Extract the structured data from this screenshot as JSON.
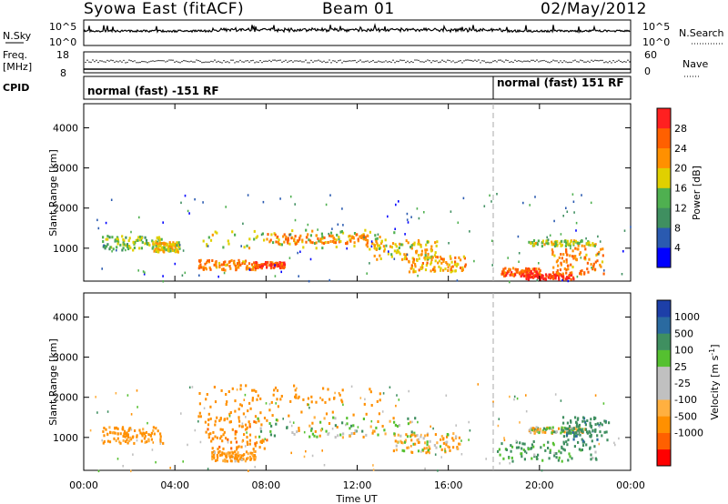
{
  "header": {
    "title": "Syowa East (fitACF)",
    "beam": "Beam 01",
    "date": "02/May/2012"
  },
  "noise_panel": {
    "left_label": "N.Sky",
    "right_label": "N.Search",
    "top_tick": "10^5",
    "bottom_tick": "10^0",
    "right_top_tick": "10^5",
    "right_bottom_tick": "10^0"
  },
  "freq_panel": {
    "label_line1": "Freq.",
    "label_line2": "[MHz]",
    "left_top_tick": "18",
    "left_bottom_tick": "8",
    "right_label": "Nave",
    "right_top_tick": "60",
    "right_bottom_tick": "0"
  },
  "cpid_panel": {
    "label": "CPID",
    "mode1": "normal (fast) -151 RF",
    "mode2": "normal (fast) 151 RF",
    "mode_change_hour": 18
  },
  "x_axis": {
    "label": "Time UT",
    "ticks": [
      "00:00",
      "04:00",
      "08:00",
      "12:00",
      "16:00",
      "20:00",
      "00:00"
    ]
  },
  "colors": {
    "power": [
      "#0000ff",
      "#2a5ab0",
      "#3f8f60",
      "#4fb050",
      "#e0d000",
      "#ff9000",
      "#ff6000",
      "#ff2020"
    ],
    "velocity": [
      "#ff0000",
      "#ff6000",
      "#ff9000",
      "#ffb040",
      "#c0c0c0",
      "#c0c0c0",
      "#55c030",
      "#3f8f60",
      "#2a6aa0",
      "#1d3fa8"
    ]
  },
  "chart_data": [
    {
      "type": "heatmap",
      "ylabel": "Slant Range [km]",
      "xlabel": "",
      "ylim": [
        180,
        4600
      ],
      "yticks": [
        "1000",
        "2000",
        "3000",
        "4000"
      ],
      "xlim": [
        0,
        24
      ],
      "colorbar_label": "Power [dB]",
      "colorbar_ticks": [
        "4",
        "8",
        "12",
        "16",
        "20",
        "24",
        "28"
      ],
      "colorbar_range": [
        0,
        30
      ],
      "bands": [
        {
          "t0": 0.8,
          "t1": 3.5,
          "r0": 950,
          "r1": 1300,
          "value": 14
        },
        {
          "t0": 3.0,
          "t1": 4.2,
          "r0": 900,
          "r1": 1150,
          "value": 18
        },
        {
          "t0": 5.0,
          "t1": 7.5,
          "r0": 450,
          "r1": 700,
          "value": 22
        },
        {
          "t0": 7.5,
          "t1": 8.8,
          "r0": 500,
          "r1": 650,
          "value": 26
        },
        {
          "t0": 5.2,
          "t1": 14.0,
          "r0": 1000,
          "r1": 1450,
          "value": 16
        },
        {
          "t0": 8.0,
          "t1": 12.5,
          "r0": 1100,
          "r1": 1350,
          "value": 22
        },
        {
          "t0": 12.5,
          "t1": 15.5,
          "r0": 700,
          "r1": 1200,
          "value": 18
        },
        {
          "t0": 14.0,
          "t1": 16.8,
          "r0": 400,
          "r1": 800,
          "value": 20
        },
        {
          "t0": 18.3,
          "t1": 20.0,
          "r0": 300,
          "r1": 500,
          "value": 24
        },
        {
          "t0": 19.3,
          "t1": 21.5,
          "r0": 220,
          "r1": 350,
          "value": 28
        },
        {
          "t0": 20.5,
          "t1": 22.8,
          "r0": 350,
          "r1": 1000,
          "value": 22
        },
        {
          "t0": 19.5,
          "t1": 22.5,
          "r0": 1050,
          "r1": 1200,
          "value": 16
        }
      ]
    },
    {
      "type": "heatmap",
      "ylabel": "Slant Range [km]",
      "xlabel": "Time UT",
      "ylim": [
        180,
        4600
      ],
      "yticks": [
        "1000",
        "2000",
        "3000",
        "4000"
      ],
      "xlim": [
        0,
        24
      ],
      "colorbar_label": "Velocity [m s^-1]",
      "colorbar_ticks": [
        "1000",
        "500",
        "100",
        "25",
        "-25",
        "-100",
        "-500",
        "-1000"
      ],
      "colorbar_range": [
        -1000,
        1000
      ],
      "bands": [
        {
          "t0": 0.8,
          "t1": 3.5,
          "r0": 850,
          "r1": 1250,
          "value": -200
        },
        {
          "t0": 5.3,
          "t1": 8.0,
          "r0": 700,
          "r1": 1500,
          "value": -400
        },
        {
          "t0": 5.5,
          "t1": 7.5,
          "r0": 400,
          "r1": 650,
          "value": -150
        },
        {
          "t0": 7.5,
          "t1": 14.5,
          "r0": 1000,
          "r1": 1500,
          "value": 0
        },
        {
          "t0": 5.0,
          "t1": 13.0,
          "r0": 1500,
          "r1": 2300,
          "value": -300
        },
        {
          "t0": 13.5,
          "t1": 16.5,
          "r0": 600,
          "r1": 1100,
          "value": -80
        },
        {
          "t0": 18.0,
          "t1": 22.5,
          "r0": 400,
          "r1": 900,
          "value": 150
        },
        {
          "t0": 19.5,
          "t1": 22.0,
          "r0": 1100,
          "r1": 1250,
          "value": 0
        },
        {
          "t0": 21.0,
          "t1": 23.0,
          "r0": 900,
          "r1": 1500,
          "value": 400
        }
      ]
    }
  ]
}
